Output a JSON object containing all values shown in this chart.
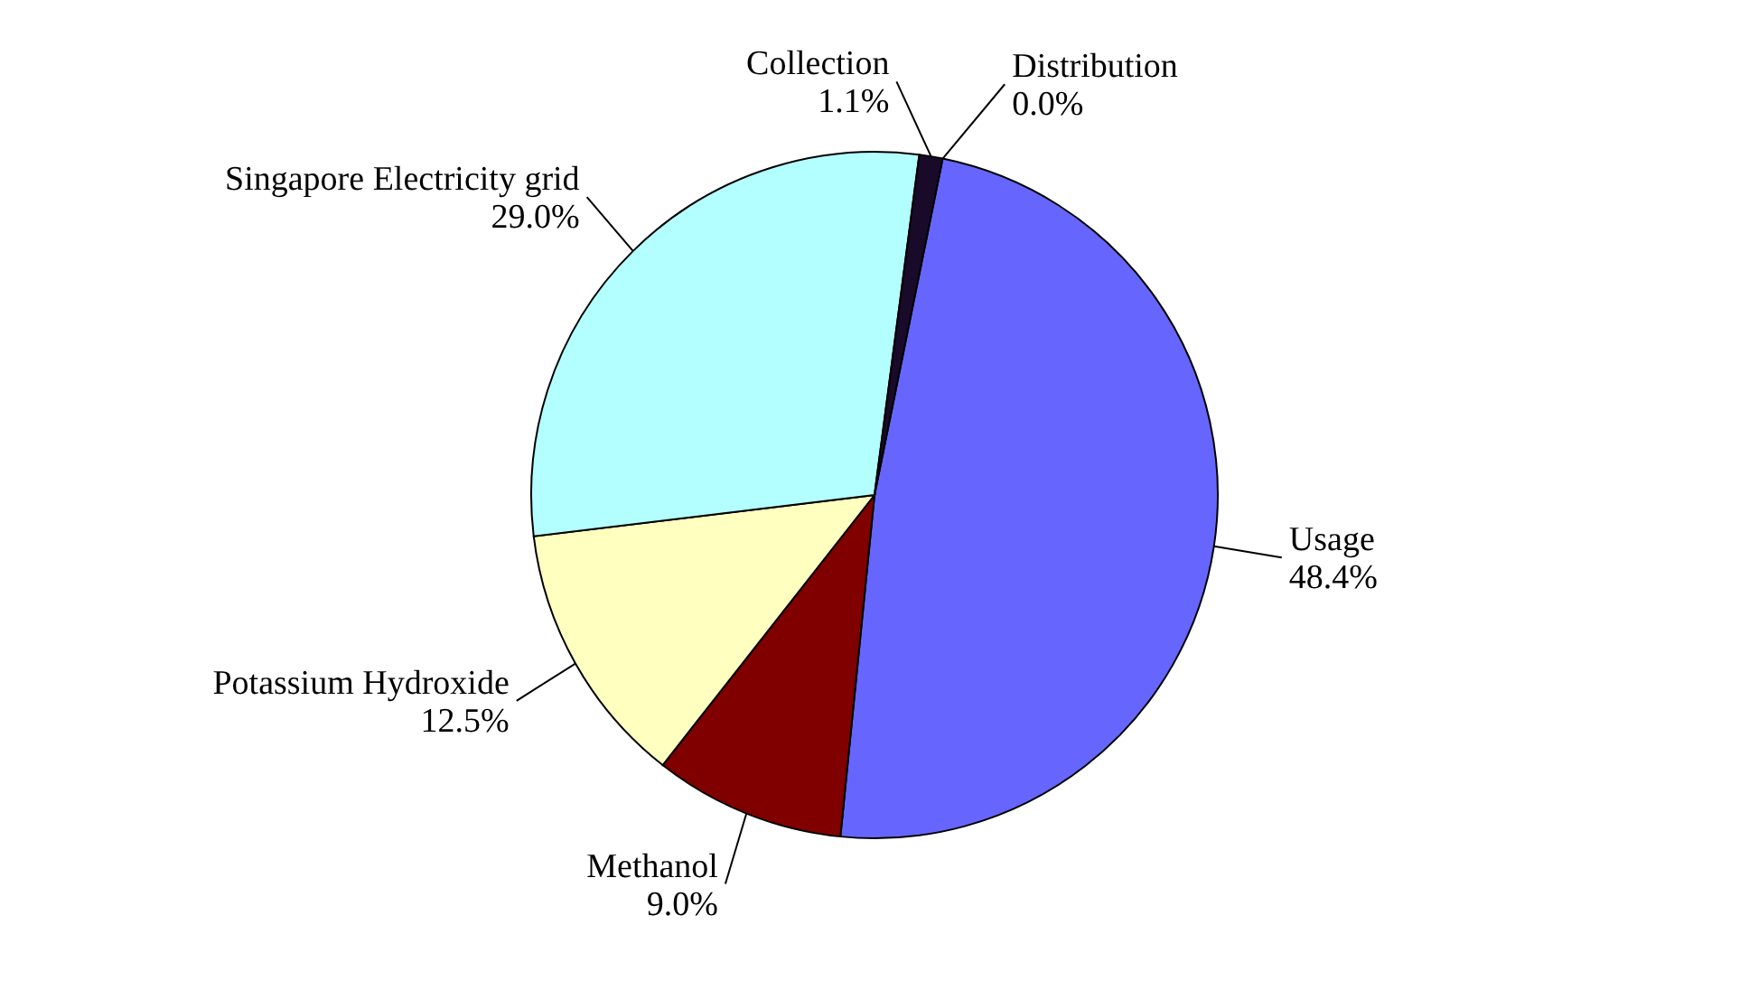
{
  "chart_data": {
    "type": "pie",
    "categories": [
      "Usage",
      "Methanol",
      "Potassium Hydroxide",
      "Singapore Electricity grid",
      "Collection",
      "Distribution"
    ],
    "values": [
      48.4,
      9.0,
      12.5,
      29.0,
      1.1,
      0.0
    ],
    "colors": [
      "#6666ff",
      "#800000",
      "#ffffc0",
      "#b3ffff",
      "#1a0a2a",
      "#000000"
    ],
    "value_labels": [
      "48.4%",
      "9.0%",
      "12.5%",
      "29.0%",
      "1.1%",
      "0.0%"
    ]
  }
}
